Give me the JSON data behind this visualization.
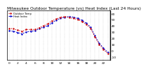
{
  "title": "Milwaukee Outdoor Temperature (vs) Heat Index (Last 24 Hours)",
  "background_color": "#ffffff",
  "plot_background": "#ffffff",
  "temp_color": "#cc0000",
  "heat_color": "#0000cc",
  "grid_color": "#888888",
  "hours": [
    0,
    1,
    2,
    3,
    4,
    5,
    6,
    7,
    8,
    9,
    10,
    11,
    12,
    13,
    14,
    15,
    16,
    17,
    18,
    19,
    20,
    21,
    22,
    23
  ],
  "temp": [
    36,
    35,
    33,
    31,
    34,
    34,
    34,
    37,
    40,
    43,
    48,
    51,
    54,
    55,
    53,
    52,
    50,
    47,
    42,
    36,
    22,
    10,
    2,
    -5
  ],
  "heat": [
    32,
    31,
    29,
    27,
    30,
    31,
    32,
    35,
    38,
    40,
    45,
    49,
    52,
    54,
    55,
    54,
    52,
    49,
    44,
    38,
    24,
    12,
    4,
    -3
  ],
  "ylim": [
    -15,
    65
  ],
  "yticks": [
    -10,
    0,
    10,
    20,
    30,
    40,
    50,
    60
  ],
  "xtick_positions": [
    0,
    2,
    4,
    6,
    8,
    10,
    12,
    14,
    16,
    18,
    20,
    22
  ],
  "xtick_labels": [
    "0",
    "2",
    "4",
    "6",
    "8",
    "10",
    "12",
    "14",
    "16",
    "18",
    "20",
    "22"
  ],
  "title_fontsize": 4.2,
  "tick_fontsize": 3.2,
  "legend_labels": [
    "Outdoor Temp",
    "Heat Index"
  ],
  "legend_colors": [
    "#cc0000",
    "#0000cc"
  ],
  "right_border_color": "#000000"
}
